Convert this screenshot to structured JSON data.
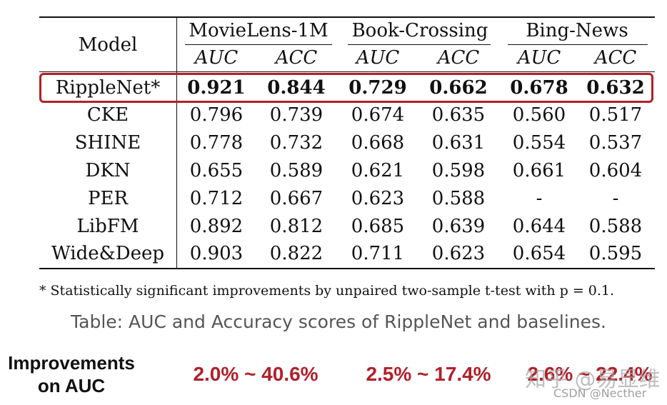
{
  "table": {
    "model_header": "Model",
    "groups": [
      "MovieLens-1M",
      "Book-Crossing",
      "Bing-News"
    ],
    "metrics": [
      "AUC",
      "ACC",
      "AUC",
      "ACC",
      "AUC",
      "ACC"
    ],
    "rows": [
      {
        "model": "RippleNet*",
        "values": [
          "0.921",
          "0.844",
          "0.729",
          "0.662",
          "0.678",
          "0.632"
        ],
        "highlight": true
      },
      {
        "model": "CKE",
        "values": [
          "0.796",
          "0.739",
          "0.674",
          "0.635",
          "0.560",
          "0.517"
        ]
      },
      {
        "model": "SHINE",
        "values": [
          "0.778",
          "0.732",
          "0.668",
          "0.631",
          "0.554",
          "0.537"
        ]
      },
      {
        "model": "DKN",
        "values": [
          "0.655",
          "0.589",
          "0.621",
          "0.598",
          "0.661",
          "0.604"
        ]
      },
      {
        "model": "PER",
        "values": [
          "0.712",
          "0.667",
          "0.623",
          "0.588",
          "-",
          "-"
        ]
      },
      {
        "model": "LibFM",
        "values": [
          "0.892",
          "0.812",
          "0.685",
          "0.639",
          "0.644",
          "0.588"
        ]
      },
      {
        "model": "Wide&Deep",
        "values": [
          "0.903",
          "0.822",
          "0.711",
          "0.623",
          "0.654",
          "0.595"
        ]
      }
    ]
  },
  "footnote": "* Statistically significant improvements by unpaired two-sample t-test with p = 0.1.",
  "caption": "Table: AUC and Accuracy scores of RippleNet and baselines.",
  "improvements": {
    "label_line1": "Improvements",
    "label_line2": "on AUC",
    "values": [
      "2.0% ~ 40.6%",
      "2.5% ~ 17.4%",
      "2.6% ~ 22.4%"
    ]
  },
  "watermark": {
    "main": "知乎 @易显维",
    "sub": "CSDN @Necther"
  },
  "colors": {
    "accent_red": "#b0202a",
    "caption_gray": "#555555"
  }
}
